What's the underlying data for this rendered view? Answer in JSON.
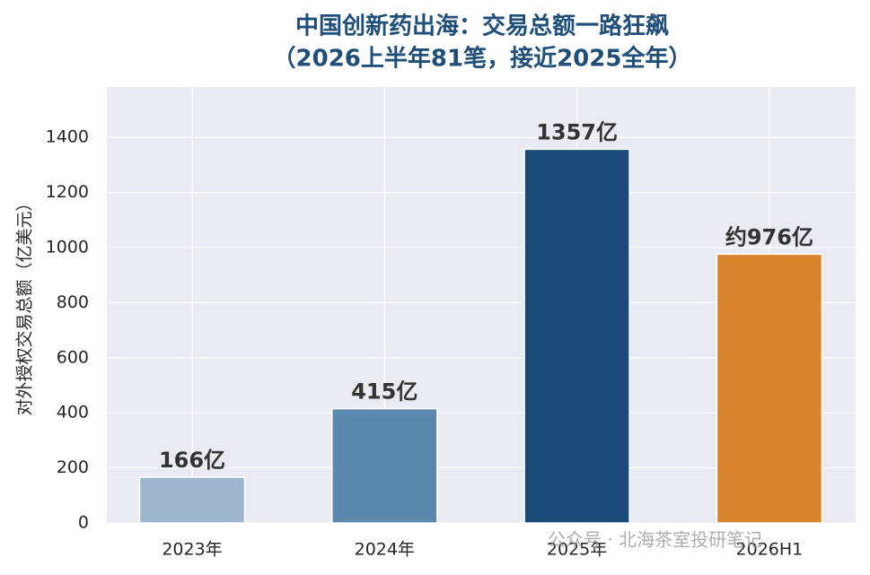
{
  "chart_data": {
    "type": "bar",
    "title": "中国创新药出海：交易总额一路狂飙",
    "subtitle": "（2026上半年81笔，接近2025全年）",
    "ylabel": "对外授权交易总额（亿美元）",
    "categories": [
      "2023年",
      "2024年",
      "2025年",
      "2026H1"
    ],
    "values": [
      166,
      415,
      1357,
      976
    ],
    "value_labels": [
      "166亿",
      "415亿",
      "1357亿",
      "约976亿"
    ],
    "colors": [
      "#9db5cb",
      "#5d88ae",
      "#1c4a78",
      "#d9832d"
    ],
    "ylim": [
      0,
      1583
    ],
    "yticks": [
      0,
      200,
      400,
      600,
      800,
      1000,
      1200,
      1400
    ],
    "grid": true,
    "watermark": "公众号 · 北海茶室投研笔记"
  }
}
